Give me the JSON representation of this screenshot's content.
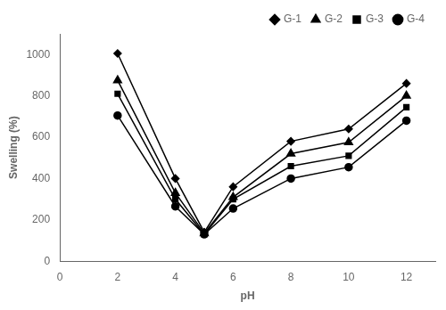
{
  "chart_data": {
    "type": "line",
    "x": [
      2,
      4,
      5,
      6,
      8,
      10,
      12
    ],
    "series": [
      {
        "name": "G-1",
        "color": "#000000",
        "marker": "diamond",
        "values": [
          1005,
          400,
          140,
          360,
          580,
          640,
          860
        ]
      },
      {
        "name": "G-2",
        "color": "#000000",
        "marker": "triangle",
        "values": [
          875,
          330,
          135,
          310,
          520,
          575,
          800
        ]
      },
      {
        "name": "G-3",
        "color": "#000000",
        "marker": "square",
        "values": [
          810,
          300,
          130,
          300,
          460,
          510,
          745
        ]
      },
      {
        "name": "G-4",
        "color": "#000000",
        "marker": "circle",
        "values": [
          705,
          265,
          130,
          255,
          400,
          455,
          680
        ]
      }
    ],
    "xlabel": "pH",
    "ylabel": "Swelling (%)",
    "xlim": [
      0,
      13
    ],
    "ylim": [
      0,
      1100
    ],
    "xticks": [
      0,
      2,
      4,
      6,
      8,
      10,
      12
    ],
    "yticks": [
      0,
      200,
      400,
      600,
      800,
      1000
    ],
    "grid": false,
    "legend": "upper right"
  }
}
